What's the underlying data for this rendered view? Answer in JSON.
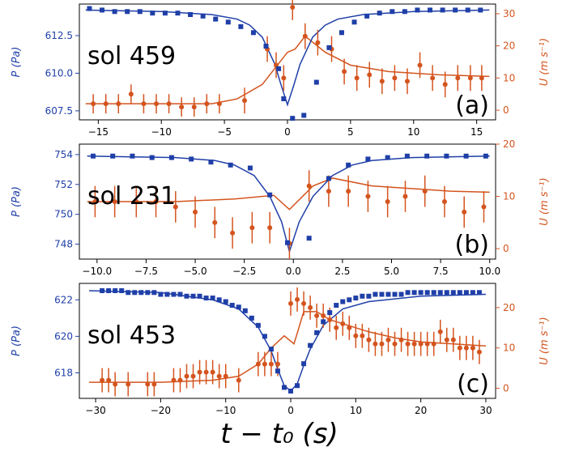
{
  "colors": {
    "pressure": "#1f3fa8",
    "wind": "#d4541e",
    "axis": "#000000"
  },
  "xlabel": "t − t₀ (s)",
  "chart_data": [
    {
      "type": "scatter",
      "annotation": "sol 459",
      "panel_label": "(a)",
      "ylabel_left": "P (Pa)",
      "ylabel_right": "U (m s⁻¹)",
      "xlim": [
        -16.5,
        16.5
      ],
      "ylim_left": [
        606.9,
        614.6
      ],
      "ylim_right": [
        -3,
        33
      ],
      "xticks": [
        -15,
        -10,
        -5,
        0,
        5,
        10,
        15
      ],
      "xtick_labels": [
        "−15",
        "−10",
        "−5",
        "0",
        "5",
        "10",
        "15"
      ],
      "yticks_left": [
        607.5,
        610.0,
        612.5
      ],
      "ytick_labels_left": [
        "607.5",
        "610.0",
        "612.5"
      ],
      "yticks_right": [
        0,
        10,
        20,
        30
      ],
      "ytick_labels_right": [
        "0",
        "10",
        "20",
        "30"
      ],
      "pressure_points": {
        "x": [
          -15.7,
          -14.7,
          -13.7,
          -12.7,
          -11.7,
          -10.7,
          -9.7,
          -8.7,
          -7.7,
          -6.7,
          -5.7,
          -4.7,
          -3.7,
          -2.7,
          -1.7,
          -0.7,
          -0.3,
          0.4,
          1.3,
          2.3,
          3.3,
          4.3,
          5.3,
          6.3,
          7.3,
          8.3,
          9.3,
          10.3,
          11.3,
          12.3,
          13.3,
          14.3,
          15.3
        ],
        "y": [
          614.3,
          614.2,
          614.1,
          614.1,
          614.1,
          614.0,
          614.0,
          614.0,
          613.9,
          613.8,
          613.6,
          613.4,
          613.1,
          612.7,
          611.8,
          610.3,
          608.3,
          607.0,
          607.2,
          609.4,
          611.7,
          612.7,
          613.4,
          613.8,
          614.0,
          614.1,
          614.1,
          614.2,
          614.2,
          614.2,
          614.2,
          614.2,
          614.2
        ]
      },
      "pressure_fit": {
        "x": [
          -16,
          -10,
          -6,
          -4,
          -3,
          -2,
          -1,
          -0.5,
          0,
          0.5,
          1,
          2,
          3,
          4,
          6,
          10,
          16
        ],
        "y": [
          614.2,
          614.1,
          613.9,
          613.6,
          613.2,
          612.4,
          610.6,
          609.2,
          607.9,
          609.2,
          610.6,
          612.4,
          613.2,
          613.6,
          613.9,
          614.1,
          614.2
        ]
      },
      "wind_points": {
        "x": [
          -15.4,
          -14.4,
          -13.4,
          -12.4,
          -11.4,
          -10.4,
          -9.4,
          -8.4,
          -7.4,
          -6.4,
          -5.4,
          -3.4,
          -1.6,
          -0.9,
          -0.3,
          0.4,
          1.4,
          2.4,
          3.5,
          4.5,
          5.5,
          6.5,
          7.5,
          8.5,
          9.5,
          10.5,
          11.5,
          12.5,
          13.5,
          14.5,
          15.4
        ],
        "y": [
          2,
          2,
          2,
          5,
          2,
          2,
          2,
          1,
          1,
          2,
          2,
          3,
          19,
          14,
          10,
          32,
          23,
          21,
          19,
          12,
          10,
          11,
          9,
          10,
          9,
          14,
          10,
          8,
          10,
          10,
          10
        ],
        "err": [
          3,
          3,
          3,
          3,
          3,
          3,
          3,
          3,
          3,
          3,
          3,
          4,
          4,
          4,
          4,
          4,
          4,
          4,
          4,
          4,
          4,
          4,
          4,
          4,
          4,
          4,
          4,
          4,
          4,
          4,
          4
        ]
      },
      "wind_fit": {
        "x": [
          -16,
          -8,
          -6,
          -4,
          -2,
          -1,
          0,
          0.6,
          1.4,
          3,
          5,
          8,
          12,
          16
        ],
        "y": [
          2,
          2,
          2,
          3.5,
          8,
          13,
          18,
          19,
          23,
          18,
          14,
          12,
          11,
          10.5
        ]
      }
    },
    {
      "type": "scatter",
      "annotation": "sol 231",
      "panel_label": "(b)",
      "ylabel_left": "P (Pa)",
      "ylabel_right": "U (m s⁻¹)",
      "xlim": [
        -10.9,
        10.3
      ],
      "ylim_left": [
        747.0,
        754.7
      ],
      "ylim_right": [
        -2,
        20
      ],
      "xticks": [
        -10.0,
        -7.5,
        -5.0,
        -2.5,
        0.0,
        2.5,
        5.0,
        7.5,
        10.0
      ],
      "xtick_labels": [
        "−10.0",
        "−7.5",
        "−5.0",
        "−2.5",
        "0.0",
        "2.5",
        "5.0",
        "7.5",
        "10.0"
      ],
      "yticks_left": [
        748,
        750,
        752,
        754
      ],
      "ytick_labels_left": [
        "748",
        "750",
        "752",
        "754"
      ],
      "yticks_right": [
        0,
        10,
        20
      ],
      "ytick_labels_right": [
        "0",
        "10",
        "20"
      ],
      "pressure_points": {
        "x": [
          -10.2,
          -9.2,
          -8.2,
          -7.2,
          -6.2,
          -5.2,
          -4.2,
          -3.2,
          -2.2,
          -1.2,
          -0.3,
          0.8,
          1.8,
          2.8,
          3.8,
          4.8,
          5.8,
          6.8,
          7.8,
          8.8,
          9.8
        ],
        "y": [
          753.9,
          753.9,
          753.9,
          753.8,
          753.8,
          753.7,
          753.5,
          753.3,
          753.1,
          751.3,
          748.1,
          748.4,
          752.4,
          753.3,
          753.7,
          753.8,
          753.9,
          753.9,
          753.9,
          753.9,
          753.9
        ]
      },
      "pressure_fit": {
        "x": [
          -10.5,
          -6,
          -4,
          -3,
          -2,
          -1.2,
          -0.6,
          -0.2,
          0.3,
          1,
          2,
          3,
          4,
          6,
          10
        ],
        "y": [
          753.9,
          753.8,
          753.6,
          753.3,
          752.6,
          751.2,
          749.5,
          747.5,
          749.5,
          751.2,
          752.6,
          753.3,
          753.6,
          753.8,
          753.9
        ]
      },
      "wind_points": {
        "x": [
          -10.1,
          -9.1,
          -8.0,
          -7.0,
          -6.0,
          -5.0,
          -4.0,
          -3.1,
          -2.1,
          -1.2,
          -0.2,
          0.8,
          1.8,
          2.8,
          3.8,
          4.8,
          5.7,
          6.7,
          7.7,
          8.7,
          9.7
        ],
        "y": [
          9,
          9,
          9,
          9,
          8,
          7,
          5,
          3,
          4,
          4,
          1,
          12,
          11,
          11,
          10,
          9,
          10,
          11,
          9,
          7,
          8
        ],
        "err": [
          3,
          3,
          3,
          3,
          3,
          3,
          3,
          3,
          3,
          3,
          3,
          3,
          3,
          3,
          3,
          3,
          3,
          3,
          3,
          3,
          3
        ]
      },
      "wind_fit": {
        "x": [
          -10.5,
          -6,
          -3,
          -1,
          -0.2,
          1,
          2,
          4,
          6,
          8,
          10
        ],
        "y": [
          9,
          9,
          9.5,
          10.2,
          7.5,
          12,
          13.5,
          12,
          11.5,
          11,
          10.8
        ]
      }
    },
    {
      "type": "scatter",
      "annotation": "sol 453",
      "panel_label": "(c)",
      "ylabel_left": "P (Pa)",
      "ylabel_right": "U (m s⁻¹)",
      "xlim": [
        -32.5,
        31.5
      ],
      "ylim_left": [
        616.6,
        622.9
      ],
      "ylim_right": [
        -2.5,
        26
      ],
      "xticks": [
        -30,
        -20,
        -10,
        0,
        10,
        20,
        30
      ],
      "xtick_labels": [
        "−30",
        "−20",
        "−10",
        "0",
        "10",
        "20",
        "30"
      ],
      "yticks_left": [
        618,
        620,
        622
      ],
      "ytick_labels_left": [
        "618",
        "620",
        "622"
      ],
      "yticks_right": [
        0,
        10,
        20
      ],
      "ytick_labels_right": [
        "0",
        "10",
        "20"
      ],
      "pressure_points": {
        "x": [
          -29,
          -28,
          -27,
          -26,
          -25,
          -24,
          -23,
          -22,
          -21,
          -20,
          -19,
          -18,
          -17,
          -16,
          -15,
          -14,
          -13,
          -12,
          -11,
          -10,
          -9,
          -8,
          -7,
          -6,
          -5,
          -4,
          -3,
          -2,
          -1,
          0,
          1,
          2,
          3,
          4,
          5,
          6,
          7,
          8,
          9,
          10,
          11,
          12,
          13,
          14,
          15,
          16,
          17,
          18,
          19,
          20,
          21,
          22,
          23,
          24,
          25,
          26,
          27,
          28,
          29
        ],
        "y": [
          622.5,
          622.5,
          622.5,
          622.5,
          622.4,
          622.4,
          622.4,
          622.4,
          622.4,
          622.3,
          622.3,
          622.3,
          622.3,
          622.2,
          622.2,
          622.2,
          622.1,
          622.1,
          622.0,
          621.9,
          621.7,
          621.6,
          621.4,
          621.0,
          620.6,
          620.0,
          619.3,
          618.1,
          617.2,
          617.0,
          617.3,
          618.5,
          619.5,
          620.2,
          620.8,
          621.3,
          621.7,
          621.9,
          622.0,
          622.1,
          622.2,
          622.2,
          622.3,
          622.3,
          622.3,
          622.3,
          622.3,
          622.4,
          622.4,
          622.4,
          622.4,
          622.4,
          622.4,
          622.4,
          622.4,
          622.4,
          622.4,
          622.4,
          622.4
        ]
      },
      "pressure_fit": {
        "x": [
          -31,
          -20,
          -12,
          -8,
          -5,
          -3,
          -2,
          -1,
          0,
          1,
          2,
          3,
          5,
          8,
          12,
          20,
          30
        ],
        "y": [
          622.5,
          622.4,
          622.0,
          621.5,
          620.5,
          619.2,
          618.2,
          617.3,
          617.0,
          617.4,
          618.4,
          619.3,
          620.6,
          621.5,
          621.9,
          622.2,
          622.3
        ]
      },
      "wind_points": {
        "x": [
          -29,
          -28,
          -27,
          -25,
          -22,
          -21,
          -18,
          -17,
          -16,
          -15,
          -14,
          -13,
          -12,
          -11,
          -10,
          -8,
          -5,
          -4,
          -3,
          -2,
          0,
          1,
          2,
          3,
          4,
          5,
          6,
          7,
          8,
          9,
          10,
          11,
          12,
          13,
          14,
          15,
          16,
          17,
          18,
          19,
          20,
          21,
          22,
          23,
          24,
          25,
          26,
          27,
          28,
          29
        ],
        "y": [
          2,
          2,
          1,
          1,
          1,
          1,
          2,
          2,
          3,
          3,
          4,
          4,
          4,
          3,
          3,
          2,
          6,
          6,
          6,
          6,
          21,
          22,
          21,
          20,
          18,
          18,
          17,
          15,
          16,
          15,
          13,
          13,
          12,
          11,
          11,
          12,
          11,
          12,
          11,
          11,
          11,
          11,
          11,
          14,
          12,
          12,
          10,
          10,
          10,
          9
        ],
        "err": [
          3,
          3,
          3,
          3,
          3,
          3,
          3,
          3,
          3,
          3,
          3,
          3,
          3,
          3,
          3,
          3,
          3,
          3,
          3,
          3,
          3,
          3,
          3,
          3,
          3,
          3,
          3,
          3,
          3,
          3,
          3,
          3,
          3,
          3,
          3,
          3,
          3,
          3,
          3,
          3,
          3,
          3,
          3,
          3,
          3,
          3,
          3,
          3,
          3,
          3
        ]
      },
      "wind_fit": {
        "x": [
          -31,
          -20,
          -12,
          -8,
          -5,
          -3,
          -1,
          0.5,
          2,
          4,
          6,
          8,
          12,
          16,
          20,
          25,
          30
        ],
        "y": [
          1.5,
          1.5,
          2,
          3,
          6,
          10,
          13,
          11,
          19,
          19,
          17,
          16,
          14,
          12.5,
          11.5,
          11,
          10.5
        ]
      }
    }
  ]
}
